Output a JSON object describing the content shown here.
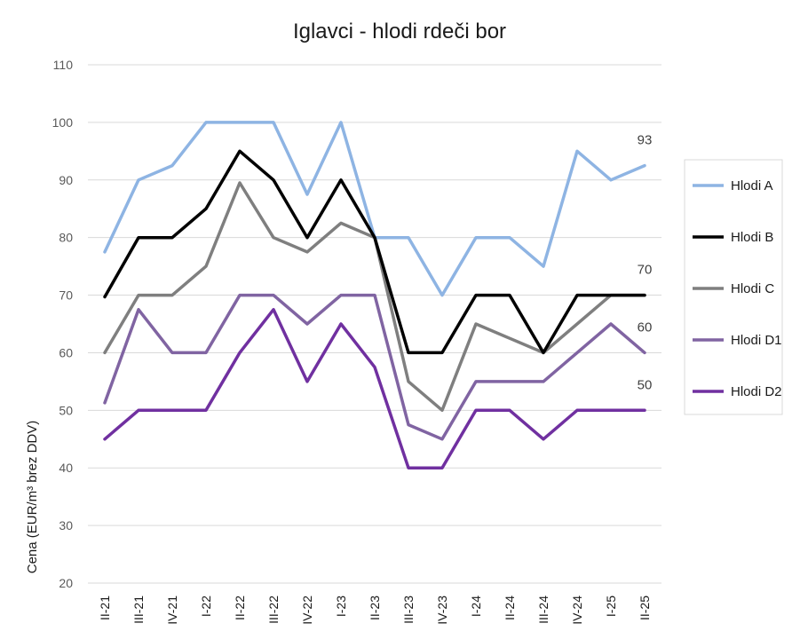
{
  "chart_data": {
    "type": "line",
    "title": "Iglavci - hlodi rdeči bor",
    "ylabel": "Cena (EUR/m³ brez DDV)",
    "xlabel": "",
    "ylim": [
      20,
      110
    ],
    "yticks": [
      20,
      30,
      40,
      50,
      60,
      70,
      80,
      90,
      100,
      110
    ],
    "grid": true,
    "legend_position": "right",
    "categories": [
      "II-21",
      "III-21",
      "IV-21",
      "I-22",
      "II-22",
      "III-22",
      "IV-22",
      "I-23",
      "II-23",
      "III-23",
      "IV-23",
      "I-24",
      "II-24",
      "III-24",
      "IV-24",
      "I-25",
      "II-25"
    ],
    "series": [
      {
        "name": "Hlodi A",
        "color": "#8eb4e3",
        "values": [
          77.5,
          90,
          92.5,
          100,
          100,
          100,
          87.5,
          100,
          80,
          80,
          70,
          80,
          80,
          75,
          95,
          90,
          92.5
        ],
        "end_label": "93"
      },
      {
        "name": "Hlodi B",
        "color": "#000000",
        "values": [
          69.7,
          80,
          80,
          85,
          95,
          90,
          80,
          90,
          80,
          60,
          60,
          70,
          70,
          60,
          70,
          70,
          70
        ],
        "end_label": ""
      },
      {
        "name": "Hlodi C",
        "color": "#7f7f7f",
        "values": [
          60,
          70,
          70,
          75,
          89.5,
          80,
          77.5,
          82.5,
          80,
          55,
          50,
          65,
          62.5,
          60,
          65,
          70,
          70
        ],
        "end_label": "70"
      },
      {
        "name": "Hlodi D1",
        "color": "#8064a2",
        "values": [
          51.3,
          67.5,
          60,
          60,
          70,
          70,
          65,
          70,
          70,
          47.5,
          45,
          55,
          55,
          55,
          60,
          65,
          60
        ],
        "end_label": "60"
      },
      {
        "name": "Hlodi D2",
        "color": "#7030a0",
        "values": [
          45,
          50,
          50,
          50,
          60,
          67.5,
          55,
          65,
          57.5,
          40,
          40,
          50,
          50,
          45,
          50,
          50,
          50
        ],
        "end_label": "50"
      }
    ]
  }
}
